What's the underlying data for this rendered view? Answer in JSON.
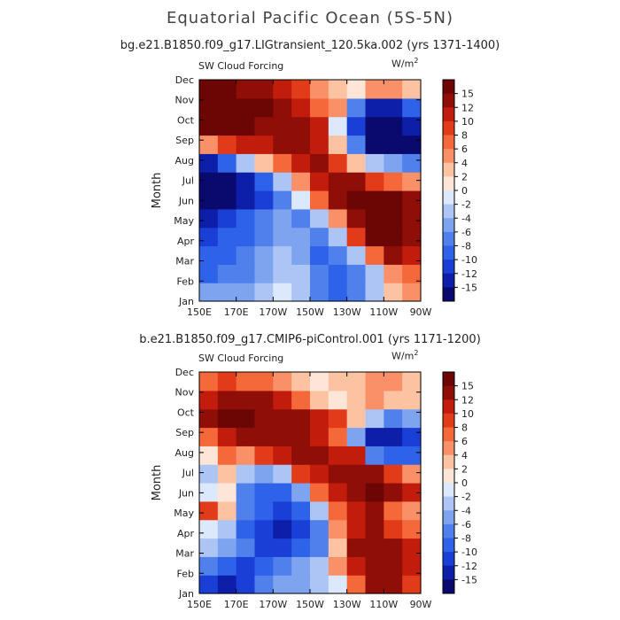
{
  "title": "Equatorial Pacific Ocean (5S-5N)",
  "units": "W/m",
  "units_sup": "2",
  "chart_data": [
    {
      "type": "heatmap",
      "subtitle": "bg.e21.B1850.f09_g17.LIGtransient_120.5ka.002 (yrs 1371-1400)",
      "variable": "SW Cloud Forcing",
      "ylabel": "Month",
      "xlabel": "",
      "x_ticks": [
        "150E",
        "170E",
        "170W",
        "150W",
        "130W",
        "110W",
        "90W"
      ],
      "y_ticks": [
        "Jan",
        "Feb",
        "Mar",
        "Apr",
        "May",
        "Jun",
        "Jul",
        "Aug",
        "Sep",
        "Oct",
        "Nov",
        "Dec"
      ],
      "colorbar_ticks": [
        "15",
        "12",
        "10",
        "8",
        "6",
        "4",
        "2",
        "0",
        "-2",
        "-4",
        "-6",
        "-8",
        "-10",
        "-12",
        "-15"
      ],
      "color_levels": [
        -15,
        15
      ],
      "values": [
        [
          -6,
          -6,
          -5,
          -3,
          -2,
          -3,
          -7,
          -9,
          -8,
          -4,
          3,
          4
        ],
        [
          -9,
          -8,
          -7,
          -5,
          -3,
          -4,
          -8,
          -9,
          -7,
          -3,
          5,
          6
        ],
        [
          -10,
          -9,
          -8,
          -6,
          -4,
          -6,
          -10,
          -8,
          -3,
          6,
          13,
          10
        ],
        [
          -12,
          -10,
          -9,
          -7,
          -5,
          -6,
          -8,
          -4,
          8,
          16,
          16,
          12
        ],
        [
          -14,
          -12,
          -10,
          -8,
          -6,
          -7,
          -3,
          5,
          14,
          17,
          17,
          14
        ],
        [
          -16,
          -16,
          -14,
          -12,
          -8,
          -2,
          6,
          12,
          16,
          18,
          16,
          14
        ],
        [
          -16,
          -16,
          -14,
          -10,
          -4,
          4,
          10,
          14,
          12,
          8,
          6,
          4
        ],
        [
          -14,
          -10,
          -4,
          2,
          6,
          10,
          12,
          8,
          2,
          -4,
          -6,
          -8
        ],
        [
          5,
          9,
          11,
          10,
          12,
          12,
          11,
          3,
          -8,
          -16,
          -16,
          -16
        ],
        [
          18,
          18,
          17,
          14,
          12,
          12,
          10,
          -2,
          -12,
          -16,
          -16,
          -14
        ],
        [
          18,
          18,
          17,
          15,
          12,
          10,
          7,
          4,
          -8,
          -14,
          -14,
          -10
        ],
        [
          16,
          16,
          14,
          12,
          10,
          8,
          5,
          3,
          0,
          4,
          4,
          2
        ]
      ]
    },
    {
      "type": "heatmap",
      "subtitle": "b.e21.B1850.f09_g17.CMIP6-piControl.001 (yrs 1171-1200)",
      "variable": "SW Cloud Forcing",
      "ylabel": "Month",
      "xlabel": "",
      "x_ticks": [
        "150E",
        "170E",
        "170W",
        "150W",
        "130W",
        "110W",
        "90W"
      ],
      "y_ticks": [
        "Jan",
        "Feb",
        "Mar",
        "Apr",
        "May",
        "Jun",
        "Jul",
        "Aug",
        "Sep",
        "Oct",
        "Nov",
        "Dec"
      ],
      "colorbar_ticks": [
        "15",
        "12",
        "10",
        "8",
        "6",
        "4",
        "2",
        "0",
        "-2",
        "-4",
        "-6",
        "-8",
        "-10",
        "-12",
        "-15"
      ],
      "color_levels": [
        -15,
        15
      ],
      "values": [
        [
          -12,
          -14,
          -12,
          -8,
          -6,
          -6,
          -4,
          -2,
          6,
          12,
          14,
          8
        ],
        [
          -8,
          -10,
          -11,
          -9,
          -8,
          -6,
          -4,
          4,
          10,
          14,
          12,
          10
        ],
        [
          -4,
          -6,
          -8,
          -12,
          -12,
          -10,
          -8,
          2,
          12,
          14,
          12,
          10
        ],
        [
          -2,
          -4,
          -10,
          -12,
          -14,
          -12,
          -8,
          4,
          10,
          12,
          8,
          6
        ],
        [
          8,
          2,
          -8,
          -10,
          -12,
          -10,
          -4,
          6,
          10,
          14,
          6,
          4
        ],
        [
          -2,
          0,
          -8,
          -10,
          -10,
          -6,
          6,
          10,
          12,
          16,
          14,
          10
        ],
        [
          -4,
          2,
          -4,
          -6,
          -4,
          8,
          10,
          12,
          14,
          14,
          8,
          4
        ],
        [
          0,
          6,
          4,
          8,
          10,
          12,
          14,
          10,
          10,
          -8,
          -10,
          -10
        ],
        [
          6,
          10,
          12,
          12,
          12,
          12,
          10,
          6,
          -6,
          -14,
          -14,
          -12
        ],
        [
          14,
          18,
          18,
          14,
          12,
          12,
          10,
          8,
          2,
          -4,
          -8,
          -6
        ],
        [
          10,
          12,
          14,
          12,
          10,
          6,
          2,
          0,
          2,
          4,
          2,
          2
        ],
        [
          6,
          8,
          6,
          6,
          4,
          2,
          0,
          2,
          2,
          4,
          4,
          2
        ]
      ]
    }
  ]
}
